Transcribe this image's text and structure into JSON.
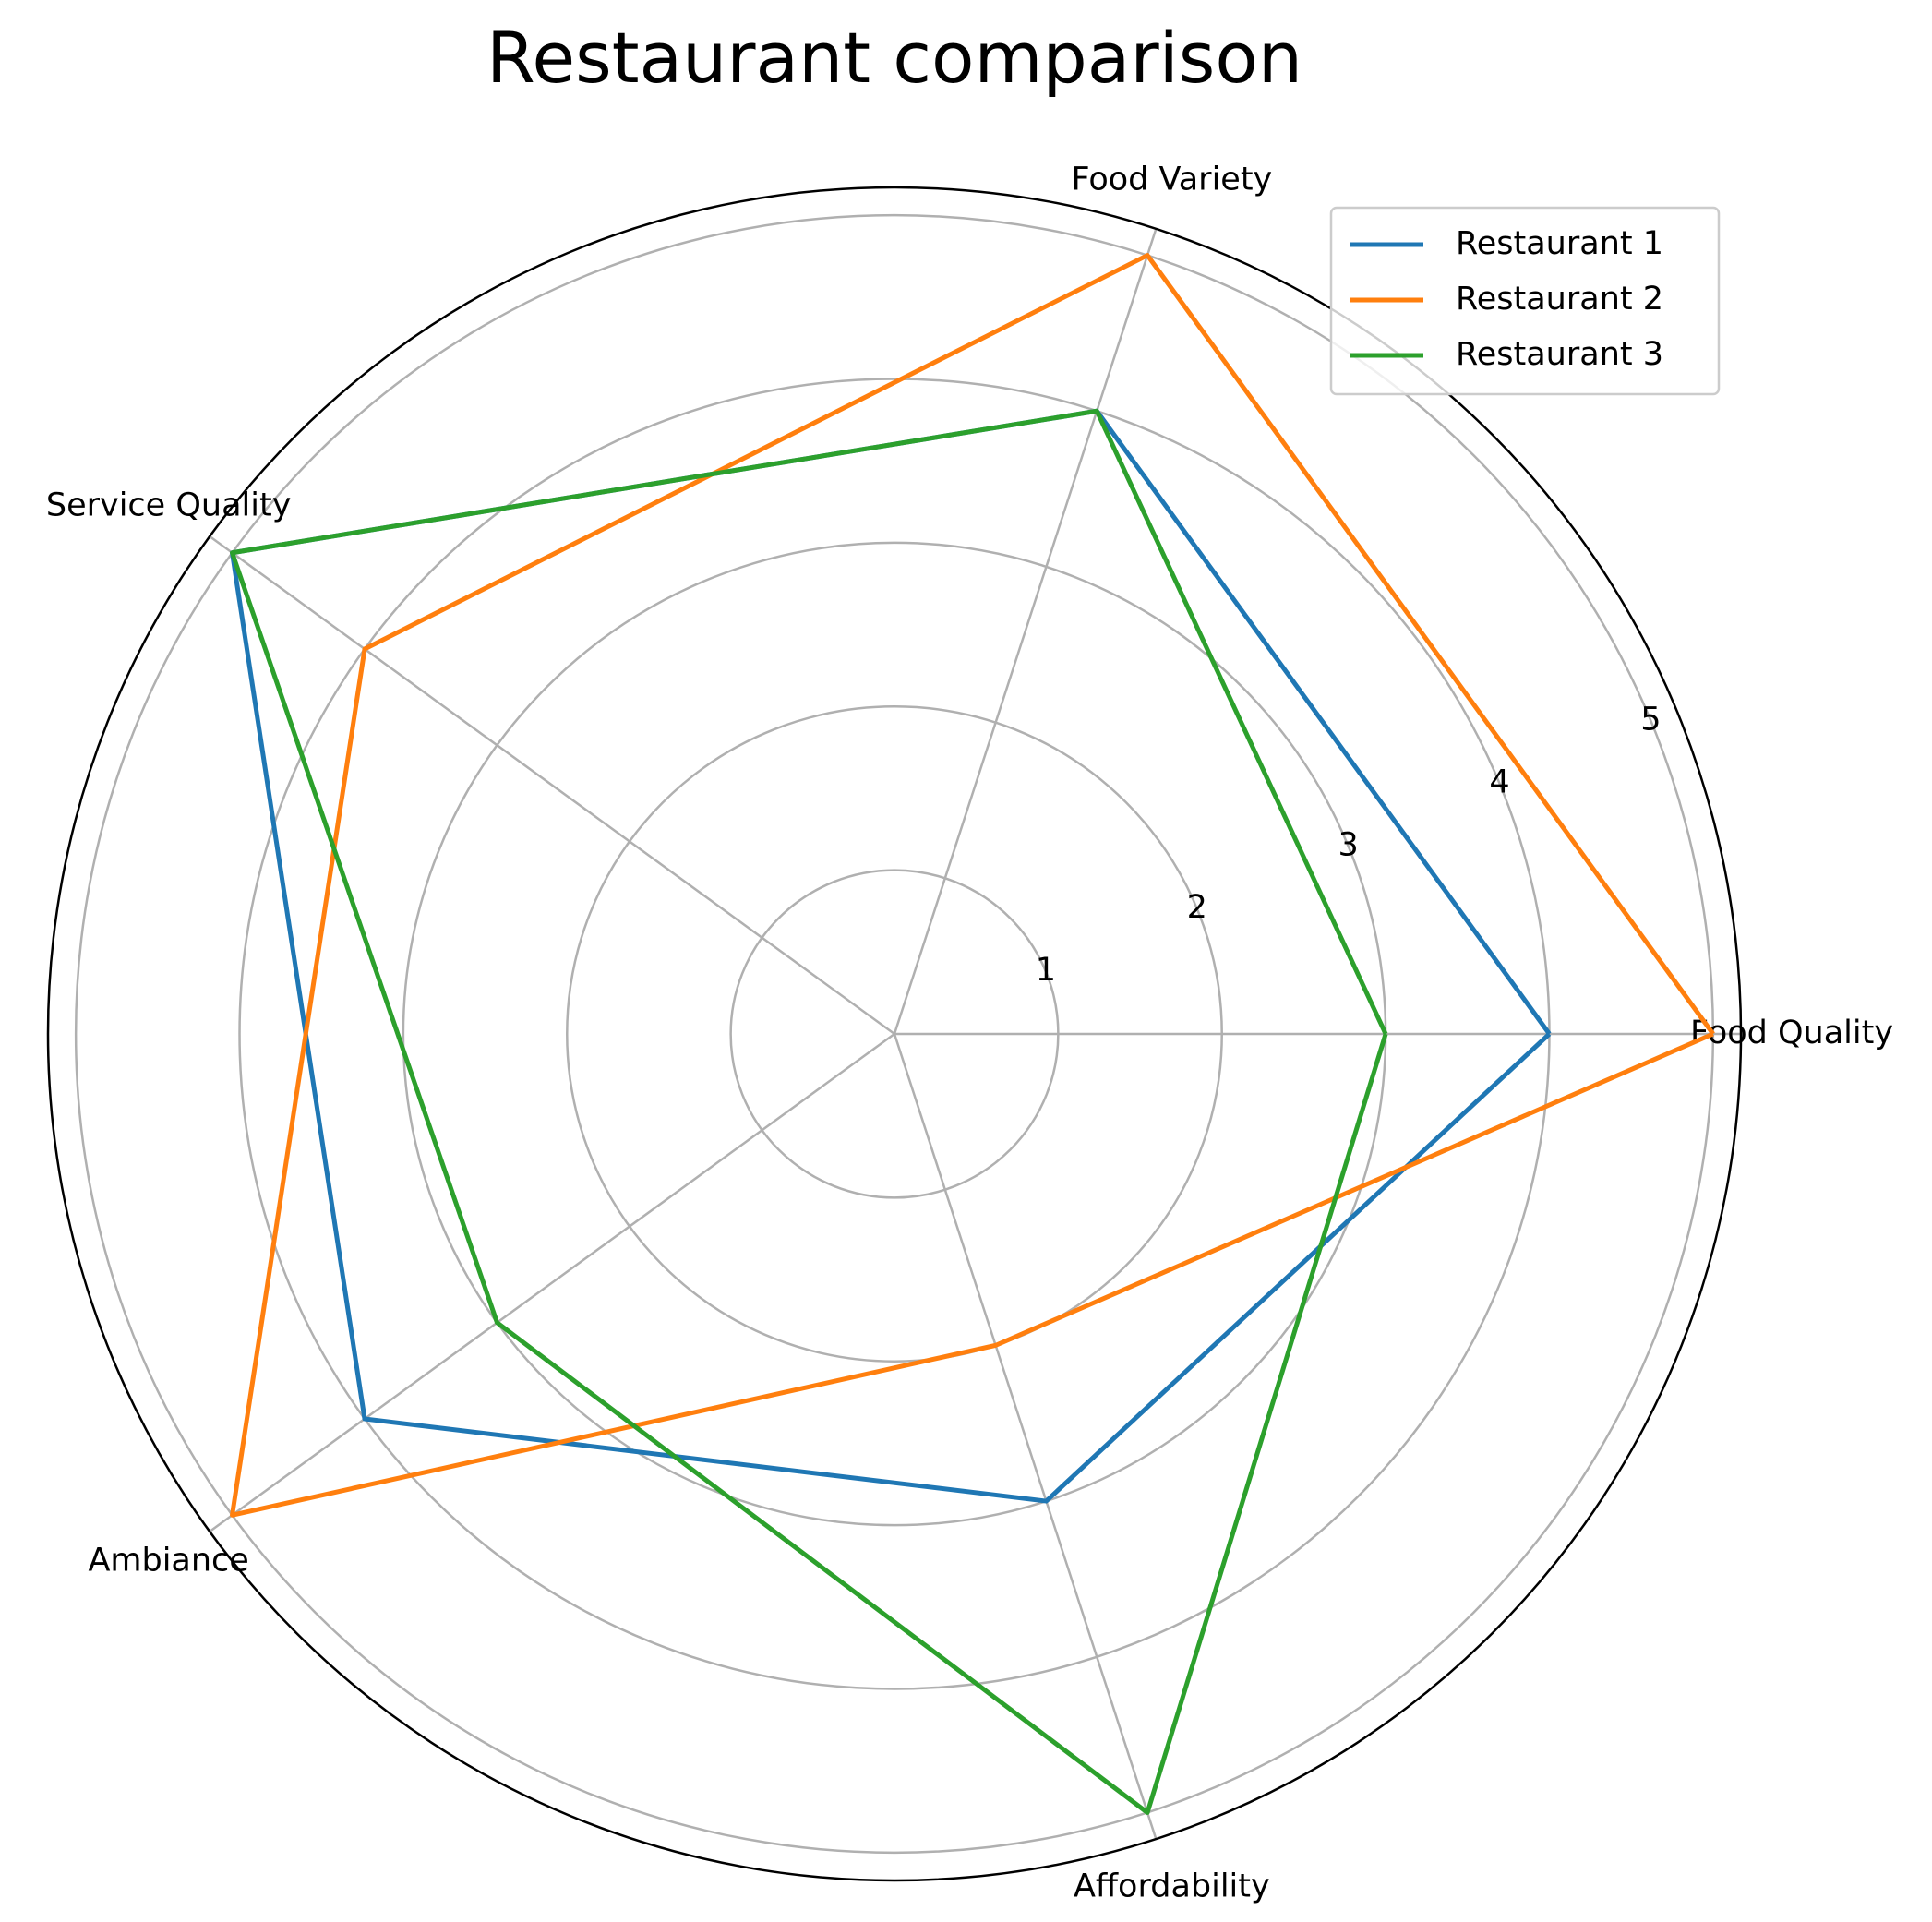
{
  "chart_data": {
    "type": "radar",
    "title": "Restaurant comparison",
    "categories": [
      "Food Quality",
      "Food Variety",
      "Service Quality",
      "Ambiance",
      "Affordability"
    ],
    "series": [
      {
        "name": "Restaurant 1",
        "color": "#1f77b4",
        "values": [
          4,
          4,
          5,
          4,
          3
        ]
      },
      {
        "name": "Restaurant 2",
        "color": "#ff7f0e",
        "values": [
          5,
          5,
          4,
          5,
          2
        ]
      },
      {
        "name": "Restaurant 3",
        "color": "#2ca02c",
        "values": [
          3,
          4,
          5,
          3,
          5
        ]
      }
    ],
    "ylim": [
      0,
      5.17
    ],
    "yticks": [
      1,
      2,
      3,
      4,
      5
    ],
    "grid": true,
    "legend": "upper right"
  }
}
